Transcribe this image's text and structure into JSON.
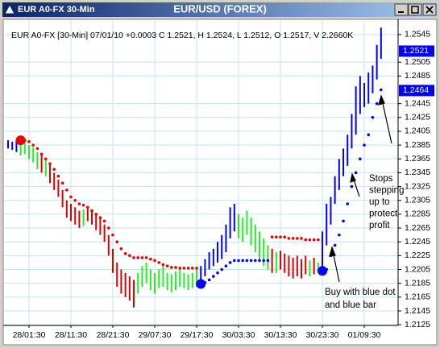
{
  "window_title": "EUR A0-FX 30-Min",
  "chart_data": {
    "type": "ohlc",
    "title": "EUR/USD (FOREX)",
    "subtitle": "EUR A0-FX [30-Min] 07/01/10 +0.0003 C 1.2521, H 1.2524, L 1.2512, O 1.2517, V 2.2660K",
    "x": [
      0,
      1,
      2,
      3,
      4,
      5,
      6,
      7,
      8,
      9,
      10,
      11,
      12,
      13,
      14,
      15,
      16,
      17,
      18,
      19,
      20,
      21,
      22,
      23,
      24,
      25,
      26,
      27,
      28,
      29,
      30,
      31,
      32,
      33,
      34,
      35,
      36,
      37,
      38,
      39,
      40,
      41,
      42,
      43,
      44,
      45,
      46,
      47,
      48,
      49,
      50,
      51,
      52,
      53,
      54,
      55,
      56,
      57,
      58,
      59,
      60,
      61,
      62,
      63,
      64,
      65,
      66,
      67,
      68,
      69,
      70,
      71,
      72,
      73,
      74,
      75,
      76,
      77,
      78,
      79,
      80,
      81,
      82,
      83,
      84,
      85,
      86,
      87,
      88,
      89
    ],
    "high": [
      1.2392,
      1.239,
      1.2392,
      1.2388,
      1.239,
      1.2385,
      1.2382,
      1.2375,
      1.237,
      1.2365,
      1.236,
      1.2345,
      1.2335,
      1.232,
      1.2305,
      1.23,
      1.2295,
      1.229,
      1.2292,
      1.2295,
      1.229,
      1.2285,
      1.228,
      1.227,
      1.2255,
      1.2235,
      1.2215,
      1.2205,
      1.22,
      1.2195,
      1.219,
      1.22,
      1.221,
      1.2215,
      1.2205,
      1.22,
      1.2205,
      1.221,
      1.22,
      1.2198,
      1.2202,
      1.2205,
      1.22,
      1.2198,
      1.22,
      1.2205,
      1.221,
      1.222,
      1.223,
      1.2235,
      1.2245,
      1.2255,
      1.227,
      1.2295,
      1.23,
      1.2285,
      1.228,
      1.229,
      1.228,
      1.227,
      1.226,
      1.225,
      1.224,
      1.2235,
      1.223,
      1.2232,
      1.2228,
      1.2225,
      1.2222,
      1.2225,
      1.222,
      1.2225,
      1.2218,
      1.2222,
      1.2215,
      1.226,
      1.23,
      1.231,
      1.234,
      1.2365,
      1.238,
      1.24,
      1.243,
      1.247,
      1.2485,
      1.2475,
      1.249,
      1.25,
      1.253,
      1.2555
    ],
    "low": [
      1.238,
      1.2378,
      1.2375,
      1.237,
      1.2372,
      1.2365,
      1.236,
      1.235,
      1.2345,
      1.234,
      1.233,
      1.232,
      1.231,
      1.2295,
      1.228,
      1.2275,
      1.227,
      1.2265,
      1.2268,
      1.2275,
      1.227,
      1.2262,
      1.2255,
      1.2245,
      1.2225,
      1.22,
      1.218,
      1.217,
      1.2165,
      1.216,
      1.215,
      1.217,
      1.218,
      1.2185,
      1.2175,
      1.217,
      1.2178,
      1.218,
      1.2175,
      1.2172,
      1.2175,
      1.218,
      1.2178,
      1.2175,
      1.2178,
      1.218,
      1.2185,
      1.2195,
      1.2205,
      1.221,
      1.2215,
      1.222,
      1.223,
      1.225,
      1.226,
      1.225,
      1.2245,
      1.2255,
      1.224,
      1.223,
      1.222,
      1.221,
      1.2205,
      1.22,
      1.22,
      1.2205,
      1.22,
      1.2195,
      1.2192,
      1.2195,
      1.2192,
      1.2198,
      1.2195,
      1.2198,
      1.22,
      1.2205,
      1.224,
      1.227,
      1.23,
      1.232,
      1.234,
      1.2355,
      1.238,
      1.24,
      1.243,
      1.244,
      1.2445,
      1.246,
      1.248,
      1.251
    ],
    "bar_colors": [
      "#0000ff",
      "#0000ff",
      "#0000ff",
      "#22ee22",
      "#22ee22",
      "#22ee22",
      "#22ee22",
      "#22ee22",
      "#dd0000",
      "#22ee22",
      "#dd0000",
      "#dd0000",
      "#dd0000",
      "#dd0000",
      "#dd0000",
      "#dd0000",
      "#dd0000",
      "#dd0000",
      "#22ee22",
      "#dd0000",
      "#dd0000",
      "#dd0000",
      "#dd0000",
      "#dd0000",
      "#dd0000",
      "#dd0000",
      "#dd0000",
      "#dd0000",
      "#dd0000",
      "#dd0000",
      "#dd0000",
      "#22ee22",
      "#22ee22",
      "#22ee22",
      "#22ee22",
      "#22ee22",
      "#22ee22",
      "#22ee22",
      "#22ee22",
      "#22ee22",
      "#22ee22",
      "#22ee22",
      "#22ee22",
      "#22ee22",
      "#22ee22",
      "#22ee22",
      "#0000ff",
      "#0000ff",
      "#0000ff",
      "#0000ff",
      "#0000ff",
      "#0000ff",
      "#0000ff",
      "#0000ff",
      "#0000ff",
      "#22ee22",
      "#22ee22",
      "#22ee22",
      "#22ee22",
      "#22ee22",
      "#22ee22",
      "#22ee22",
      "#22ee22",
      "#dd0000",
      "#22ee22",
      "#dd0000",
      "#dd0000",
      "#dd0000",
      "#dd0000",
      "#dd0000",
      "#dd0000",
      "#dd0000",
      "#22ee22",
      "#dd0000",
      "#22ee22",
      "#0000ff",
      "#0000ff",
      "#0000ff",
      "#0000ff",
      "#0000ff",
      "#0000ff",
      "#0000ff",
      "#0000ff",
      "#0000ff",
      "#0000ff",
      "#0000ff",
      "#0000ff",
      "#0000ff",
      "#0000ff",
      "#0000ff"
    ],
    "stops": [
      null,
      null,
      null,
      1.2392,
      1.2392,
      1.239,
      1.2385,
      1.238,
      1.2372,
      1.2365,
      1.2358,
      1.235,
      1.234,
      1.233,
      1.232,
      1.231,
      1.2305,
      1.23,
      1.2298,
      1.2295,
      1.229,
      1.2285,
      1.228,
      1.2275,
      1.2265,
      1.2255,
      1.2245,
      1.2235,
      1.2228,
      1.2225,
      1.2222,
      1.2222,
      1.2222,
      1.2222,
      1.222,
      1.2218,
      1.2215,
      1.2212,
      1.221,
      1.2208,
      1.2208,
      1.2207,
      1.2207,
      1.2207,
      1.2207,
      1.2207,
      1.2184,
      1.2186,
      1.219,
      1.2195,
      1.22,
      1.2205,
      1.221,
      1.2215,
      1.2218,
      1.2218,
      1.2218,
      1.2218,
      1.2218,
      1.2218,
      1.2218,
      1.2218,
      1.2218,
      1.2252,
      1.2252,
      1.2252,
      1.2252,
      1.225,
      1.225,
      1.225,
      1.225,
      1.2248,
      1.2248,
      1.2248,
      1.2248,
      1.2203,
      1.2205,
      1.2225,
      1.224,
      1.2255,
      1.2275,
      1.23,
      1.2325,
      1.2345,
      1.2365,
      1.2385,
      1.24,
      1.2425,
      1.2445,
      1.2465
    ],
    "stop_colors": [
      null,
      null,
      null,
      "#ee0000",
      "#ee0000",
      "#ee0000",
      "#ee0000",
      "#ee0000",
      "#ee0000",
      "#ee0000",
      "#ee0000",
      "#ee0000",
      "#ee0000",
      "#ee0000",
      "#ee0000",
      "#ee0000",
      "#ee0000",
      "#ee0000",
      "#ee0000",
      "#ee0000",
      "#ee0000",
      "#ee0000",
      "#ee0000",
      "#ee0000",
      "#ee0000",
      "#ee0000",
      "#ee0000",
      "#ee0000",
      "#ee0000",
      "#ee0000",
      "#ee0000",
      "#ee0000",
      "#ee0000",
      "#ee0000",
      "#ee0000",
      "#ee0000",
      "#ee0000",
      "#ee0000",
      "#ee0000",
      "#ee0000",
      "#ee0000",
      "#ee0000",
      "#ee0000",
      "#ee0000",
      "#ee0000",
      "#ee0000",
      "#0000ff",
      "#0000ff",
      "#0000ff",
      "#0000ff",
      "#0000ff",
      "#0000ff",
      "#0000ff",
      "#0000ff",
      "#0000ff",
      "#0000ff",
      "#0000ff",
      "#0000ff",
      "#0000ff",
      "#0000ff",
      "#0000ff",
      "#0000ff",
      "#0000ff",
      "#ee0000",
      "#ee0000",
      "#ee0000",
      "#ee0000",
      "#ee0000",
      "#ee0000",
      "#ee0000",
      "#ee0000",
      "#ee0000",
      "#ee0000",
      "#ee0000",
      "#ee0000",
      "#0000ff",
      "#0000ff",
      "#0000ff",
      "#0000ff",
      "#0000ff",
      "#0000ff",
      "#0000ff",
      "#0000ff",
      "#0000ff",
      "#0000ff",
      "#0000ff",
      "#0000ff",
      "#0000ff",
      "#0000ff",
      "#0000ff"
    ],
    "signals": {
      "x": [
        3,
        46,
        75
      ],
      "values": [
        1.2392,
        1.2184,
        1.2203
      ],
      "colors": [
        "#ee0000",
        "#0000ff",
        "#0000ff"
      ]
    },
    "price_markers": [
      1.2521,
      1.2464
    ],
    "marker_color": "#0000ff",
    "xlim": [
      -1,
      92.8
    ],
    "xticks": [
      {
        "value": 5,
        "label": "28/01:30"
      },
      {
        "value": 15,
        "label": "28/11:30"
      },
      {
        "value": 25,
        "label": "28/21:30"
      },
      {
        "value": 35,
        "label": "29/07:30"
      },
      {
        "value": 45,
        "label": "29/17:30"
      },
      {
        "value": 55,
        "label": "30/03:30"
      },
      {
        "value": 65,
        "label": "30/13:30"
      },
      {
        "value": 75,
        "label": "30/23:30"
      },
      {
        "value": 85,
        "label": "01/09:30"
      }
    ],
    "ylim": [
      1.2117,
      1.2567
    ],
    "yticks": [
      1.2545,
      1.2505,
      1.2485,
      1.2445,
      1.2425,
      1.2405,
      1.2385,
      1.2365,
      1.2345,
      1.2325,
      1.2305,
      1.2285,
      1.2265,
      1.2245,
      1.2225,
      1.2205,
      1.2185,
      1.2165,
      1.2145,
      1.2125
    ],
    "grid": true,
    "annotations": [
      [
        "Stops",
        "stepping",
        "up to",
        "protect",
        "profit"
      ],
      [
        "Buy with blue dot",
        "and blue bar"
      ]
    ]
  }
}
